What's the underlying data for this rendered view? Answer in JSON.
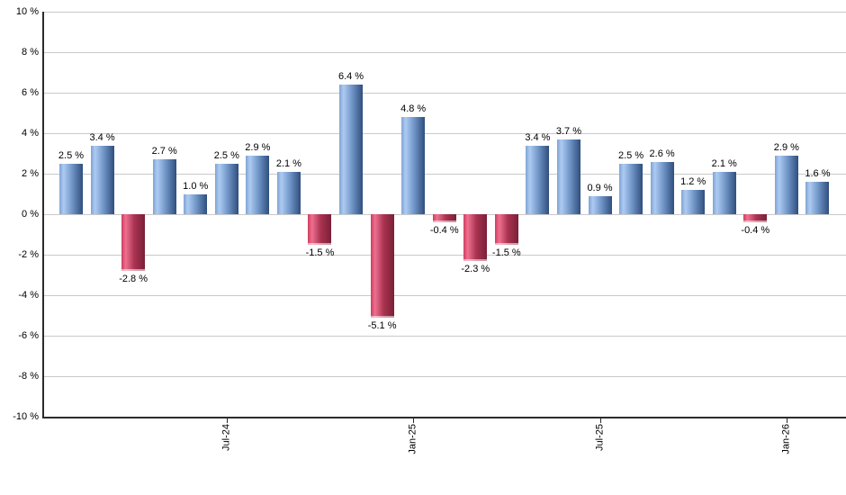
{
  "chart_data": {
    "type": "bar",
    "title": "",
    "xlabel": "",
    "ylabel": "",
    "unit": "%",
    "values": [
      2.5,
      3.4,
      -2.8,
      2.7,
      1.0,
      2.5,
      2.9,
      2.1,
      -1.5,
      6.4,
      -5.1,
      4.8,
      -0.4,
      -2.3,
      -1.5,
      3.4,
      3.7,
      0.9,
      2.5,
      2.6,
      1.2,
      2.1,
      -0.4,
      2.9,
      1.6
    ],
    "bar_labels": [
      "2.5 %",
      "3.4 %",
      "-2.8 %",
      "2.7 %",
      "1.0 %",
      "2.5 %",
      "2.9 %",
      "2.1 %",
      "-1.5 %",
      "6.4 %",
      "-5.1 %",
      "4.8 %",
      "-0.4 %",
      "-2.3 %",
      "-1.5 %",
      "3.4 %",
      "3.7 %",
      "0.9 %",
      "2.5 %",
      "2.6 %",
      "1.2 %",
      "2.1 %",
      "-0.4 %",
      "2.9 %",
      "1.6 %"
    ],
    "x_axis": {
      "tick_labels": [
        "Jul-24",
        "Jan-25",
        "Jul-25",
        "Jan-26"
      ],
      "tick_bar_indices": [
        5,
        11,
        17,
        23
      ]
    },
    "y_axis": {
      "tick_labels": [
        "10 %",
        "8 %",
        "6 %",
        "4 %",
        "2 %",
        "0 %",
        "-2 %",
        "-4 %",
        "-6 %",
        "-8 %",
        "-10 %"
      ],
      "tick_values": [
        10,
        8,
        6,
        4,
        2,
        0,
        -2,
        -4,
        -6,
        -8,
        -10
      ],
      "min": -10,
      "max": 10
    },
    "grid": true,
    "legend_position": "none",
    "colors": {
      "positive_edge": "#7fa3d4",
      "positive_highlight": "#adcbf2",
      "positive_mid": "#6f94c6",
      "positive_dark": "#2f4e7d",
      "negative_edge": "#cf3d5e",
      "negative_highlight": "#ee7090",
      "negative_mid": "#a93350",
      "negative_dark": "#7a2038",
      "gridline": "#c9c9c9",
      "axis": "#2b2b2b",
      "text": "#000000",
      "background": "#ffffff"
    }
  }
}
